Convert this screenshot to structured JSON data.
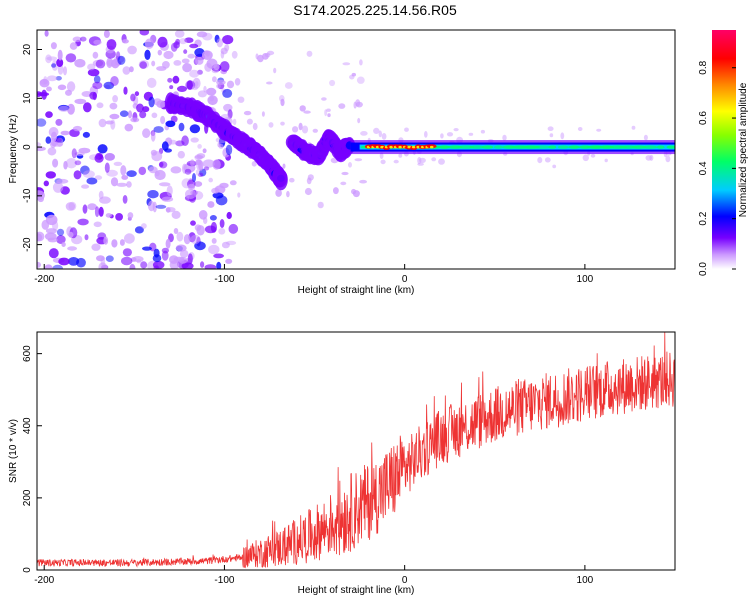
{
  "title": "S174.2025.225.14.56.R05",
  "chart_data": [
    {
      "type": "heatmap",
      "xlabel": "Height of straight line (km)",
      "ylabel": "Frequency (Hz)",
      "xlim": [
        -204,
        150
      ],
      "ylim": [
        -25,
        24
      ],
      "x_ticks": [
        -200,
        -100,
        0,
        100
      ],
      "x_tick_labels": [
        "-200",
        "-100",
        "0",
        "100"
      ],
      "y_ticks": [
        -20,
        -10,
        0,
        10,
        20
      ],
      "y_tick_labels": [
        "-20",
        "-10",
        "0",
        "10",
        "20"
      ],
      "colorbar": {
        "label": "Normalized spectral amplitude",
        "range": [
          0,
          0.95
        ],
        "ticks": [
          0,
          0.2,
          0.4,
          0.6,
          0.8
        ],
        "tick_labels": [
          "0.0",
          "0.2",
          "0.4",
          "0.6",
          "0.8"
        ],
        "colors": [
          "#ffffff",
          "#cc99ff",
          "#7700ff",
          "#0000ff",
          "#00ccff",
          "#00ff66",
          "#88ff00",
          "#ffff00",
          "#ff8800",
          "#ff0000",
          "#ff0066"
        ]
      },
      "features": {
        "noise_region_km": [
          -204,
          -120
        ],
        "descending_track": [
          [
            -130,
            9
          ],
          [
            -118,
            8
          ],
          [
            -108,
            6
          ],
          [
            -98,
            3
          ],
          [
            -90,
            1
          ],
          [
            -82,
            -1
          ],
          [
            -74,
            -4
          ],
          [
            -68,
            -7
          ]
        ],
        "secondary_track": [
          [
            -62,
            1
          ],
          [
            -55,
            -1
          ],
          [
            -48,
            -2
          ],
          [
            -42,
            2
          ],
          [
            -36,
            -1
          ],
          [
            -30,
            0.5
          ]
        ],
        "steady_band": {
          "from_km": -30,
          "to_km": 150,
          "freq_hz": 0,
          "peak_km": [
            -20,
            15
          ]
        }
      }
    },
    {
      "type": "line",
      "xlabel": "Height of straight line (km)",
      "ylabel": "SNR (10 * v/v)",
      "xlim": [
        -204,
        150
      ],
      "ylim": [
        0,
        660
      ],
      "x_ticks": [
        -200,
        -100,
        0,
        100
      ],
      "x_tick_labels": [
        "-200",
        "-100",
        "0",
        "100"
      ],
      "y_ticks": [
        0,
        200,
        400,
        600
      ],
      "y_tick_labels": [
        "0",
        "200",
        "400",
        "600"
      ],
      "color": "#ee3333",
      "trend": {
        "x": [
          -204,
          -150,
          -110,
          -90,
          -70,
          -50,
          -40,
          -30,
          -20,
          -10,
          0,
          10,
          20,
          30,
          40,
          50,
          60,
          80,
          100,
          120,
          150
        ],
        "y": [
          20,
          20,
          25,
          35,
          60,
          100,
          130,
          160,
          190,
          230,
          280,
          330,
          370,
          390,
          410,
          430,
          445,
          470,
          490,
          510,
          530
        ]
      }
    }
  ]
}
